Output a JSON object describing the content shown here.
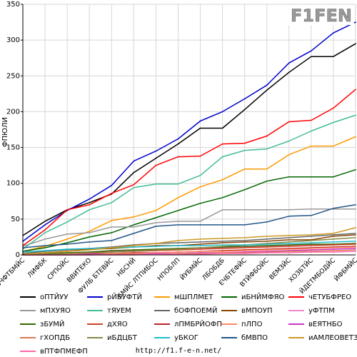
{
  "source_text": "http://f1.f-e-n.net/",
  "logo": {
    "text": "F1FEN",
    "colors": {
      "main": "#9a9a9a",
      "accent": "#ffffff"
    }
  },
  "chart_data": {
    "type": "line",
    "ylabel": "ФПЮЛИ",
    "ylim": [
      0,
      350
    ],
    "yticks": [
      0,
      50,
      100,
      150,
      200,
      250,
      300,
      350
    ],
    "grid": true,
    "legend": "bottom",
    "categories": [
      "БЧФТБМЙС",
      "ЛИФБК",
      "СРПОЙС",
      "ВВИТЕКО",
      "ФУЛБ БТЕВЙС",
      "НБСНЙ",
      "БМЙС ЛТПИБОС",
      "НПОБЛП",
      "ЙУБМЙС",
      "ЛБОБДБ",
      "ЕЧБТЕФЙС",
      "ВТЙФБОЙС",
      "ВЕМЗЙС",
      "ХОЗБТЙС",
      "ЙДЕТМБОДЙС",
      "ЙФБМЙС"
    ],
    "series": [
      {
        "name": "оПТЙУУ",
        "color": "#000000",
        "values": [
          27,
          47,
          63,
          73,
          85,
          115,
          135,
          155,
          177,
          177,
          203,
          230,
          255,
          277,
          277,
          295
        ]
      },
      {
        "name": "рЙБУФТЙ",
        "color": "#0000cc",
        "values": [
          19,
          42,
          62,
          78,
          97,
          131,
          145,
          162,
          187,
          200,
          218,
          237,
          268,
          285,
          310,
          325
        ]
      },
      {
        "name": "мШПЛМЕТ",
        "color": "#ff9900",
        "values": [
          5,
          12,
          22,
          33,
          48,
          53,
          62,
          80,
          95,
          105,
          120,
          120,
          140,
          152,
          152,
          165
        ]
      },
      {
        "name": "иБНЙМФЯО",
        "color": "#006600",
        "values": [
          5,
          10,
          17,
          25,
          31,
          42,
          52,
          62,
          72,
          80,
          91,
          103,
          109,
          109,
          109,
          119
        ]
      },
      {
        "name": "чЕТУБФРЕО",
        "color": "#ff0000",
        "values": [
          13,
          35,
          63,
          70,
          86,
          98,
          125,
          137,
          138,
          155,
          156,
          166,
          186,
          188,
          205,
          231
        ]
      },
      {
        "name": "мПХУЯО",
        "color": "#999999",
        "values": [
          12,
          22,
          29,
          31,
          39,
          39,
          45,
          47,
          47,
          63,
          63,
          63,
          63,
          64,
          64,
          64
        ]
      },
      {
        "name": "тЯУЕМ",
        "color": "#44bb99",
        "values": [
          8,
          31,
          46,
          63,
          73,
          94,
          99,
          99,
          111,
          137,
          146,
          148,
          159,
          173,
          185,
          195
        ]
      },
      {
        "name": "бОФПОЕМЙ",
        "color": "#666666",
        "values": [
          2,
          5,
          7,
          9,
          11,
          14,
          16,
          17,
          18,
          19,
          20,
          22,
          24,
          26,
          28,
          30
        ]
      },
      {
        "name": "вМПОУП",
        "color": "#884400",
        "values": [
          1,
          3,
          5,
          8,
          9,
          11,
          13,
          13,
          15,
          17,
          18,
          19,
          21,
          21,
          26,
          28
        ]
      },
      {
        "name": "уФТПМ",
        "color": "#ee88cc",
        "values": [
          0,
          2,
          3,
          4,
          5,
          6,
          7,
          8,
          9,
          10,
          11,
          12,
          13,
          14,
          15,
          16
        ]
      },
      {
        "name": "зБУМЙ",
        "color": "#336600",
        "values": [
          0,
          2,
          3,
          4,
          6,
          7,
          8,
          9,
          10,
          11,
          12,
          13,
          14,
          15,
          15,
          16
        ]
      },
      {
        "name": "дХЯО",
        "color": "#cc4422",
        "values": [
          0,
          1,
          2,
          3,
          4,
          5,
          6,
          7,
          8,
          9,
          10,
          11,
          12,
          13,
          14,
          15
        ]
      },
      {
        "name": "лПМБРЙОФП",
        "color": "#bb2222",
        "values": [
          0,
          1,
          1,
          2,
          2,
          3,
          3,
          4,
          5,
          6,
          7,
          8,
          9,
          10,
          11,
          12
        ]
      },
      {
        "name": "пЛПО",
        "color": "#ff8866",
        "values": [
          0,
          0,
          1,
          1,
          2,
          2,
          3,
          4,
          5,
          5,
          6,
          7,
          8,
          9,
          10,
          11
        ]
      },
      {
        "name": "вЕЯТНБО",
        "color": "#cc33cc",
        "values": [
          0,
          0,
          0,
          1,
          1,
          1,
          2,
          2,
          3,
          3,
          4,
          5,
          6,
          7,
          8,
          9
        ]
      },
      {
        "name": "гХОПДБ",
        "color": "#dd7755",
        "values": [
          0,
          0,
          0,
          0,
          1,
          1,
          1,
          2,
          2,
          3,
          3,
          4,
          5,
          5,
          6,
          7
        ]
      },
      {
        "name": "иБДЦБТ",
        "color": "#888844",
        "values": [
          0,
          1,
          2,
          3,
          4,
          5,
          7,
          8,
          10,
          12,
          14,
          16,
          18,
          20,
          22,
          24
        ]
      },
      {
        "name": "уБКОГ",
        "color": "#22bbcc",
        "values": [
          4,
          6,
          8,
          9,
          10,
          11,
          12,
          13,
          13,
          14,
          14,
          15,
          16,
          17,
          18,
          19
        ]
      },
      {
        "name": "бМВПО",
        "color": "#225588",
        "values": [
          10,
          13,
          15,
          18,
          20,
          30,
          40,
          42,
          42,
          42,
          42,
          46,
          54,
          55,
          65,
          70
        ]
      },
      {
        "name": "иАМЛЕОВЕТЗ",
        "color": "#cc9922",
        "values": [
          1,
          3,
          5,
          7,
          10,
          13,
          16,
          20,
          22,
          23,
          24,
          26,
          27,
          28,
          30,
          38
        ]
      },
      {
        "name": "вПТФПМЕФП",
        "color": "#ff66aa",
        "values": [
          0,
          0,
          0,
          0,
          0,
          0,
          1,
          1,
          1,
          2,
          2,
          3,
          3,
          4,
          4,
          5
        ]
      }
    ]
  }
}
